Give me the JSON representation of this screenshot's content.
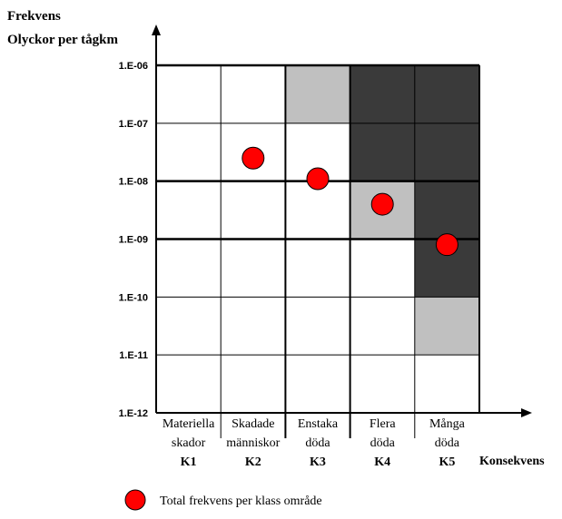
{
  "chart_data": {
    "type": "scatter",
    "title": "",
    "ylabel_line1": "Frekvens",
    "ylabel_line2": "Olyckor per tågkm",
    "xlabel": "Konsekvens",
    "y_scale": "log",
    "ylim": [
      1e-12,
      1e-06
    ],
    "y_ticks": [
      {
        "value": 1e-06,
        "label": "1.E-06"
      },
      {
        "value": 1e-07,
        "label": "1.E-07"
      },
      {
        "value": 1e-08,
        "label": "1.E-08"
      },
      {
        "value": 1e-09,
        "label": "1.E-09"
      },
      {
        "value": 1e-10,
        "label": "1.E-10"
      },
      {
        "value": 1e-11,
        "label": "1.E-11"
      },
      {
        "value": 1e-12,
        "label": "1.E-12"
      }
    ],
    "categories": [
      {
        "code": "K1",
        "line1": "Materiella",
        "line2": "skador"
      },
      {
        "code": "K2",
        "line1": "Skadade",
        "line2": "människor"
      },
      {
        "code": "K3",
        "line1": "Enstaka",
        "line2": "döda"
      },
      {
        "code": "K4",
        "line1": "Flera",
        "line2": "döda"
      },
      {
        "code": "K5",
        "line1": "Många",
        "line2": "döda"
      }
    ],
    "cells": [
      {
        "col": "K1",
        "bands": [
          "white",
          "white",
          "white",
          "white",
          "white",
          "white"
        ]
      },
      {
        "col": "K2",
        "bands": [
          "white",
          "white",
          "white",
          "white",
          "white",
          "white"
        ]
      },
      {
        "col": "K3",
        "bands": [
          "gray",
          "white",
          "white",
          "white",
          "white",
          "white"
        ]
      },
      {
        "col": "K4",
        "bands": [
          "dark",
          "dark",
          "gray",
          "white",
          "white",
          "white"
        ]
      },
      {
        "col": "K5",
        "bands": [
          "dark",
          "dark",
          "dark",
          "dark",
          "gray",
          "white"
        ]
      }
    ],
    "band_colors": {
      "white": "#ffffff",
      "gray": "#c0c0c0",
      "dark": "#3a3a3a"
    },
    "series": [
      {
        "name": "Total frekvens per klass område",
        "color": "#ff0000",
        "points": [
          {
            "x": "K2",
            "y": 2.5e-08
          },
          {
            "x": "K3",
            "y": 1.1e-08
          },
          {
            "x": "K4",
            "y": 4e-09
          },
          {
            "x": "K5",
            "y": 8e-10
          }
        ]
      }
    ],
    "legend_position": "bottom-left",
    "grid": true
  }
}
